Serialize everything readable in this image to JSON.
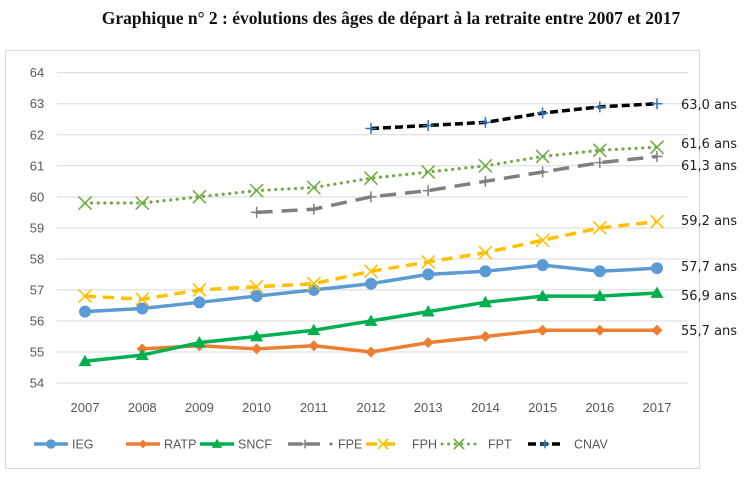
{
  "chart_data": {
    "type": "line",
    "title": "Graphique n° 2 : évolutions des âges de départ à la retraite entre 2007 et 2017",
    "xlabel": "",
    "ylabel": "",
    "x": [
      "2007",
      "2008",
      "2009",
      "2010",
      "2011",
      "2012",
      "2013",
      "2014",
      "2015",
      "2016",
      "2017"
    ],
    "yticks": [
      "54",
      "55",
      "56",
      "57",
      "58",
      "59",
      "60",
      "61",
      "62",
      "63",
      "64"
    ],
    "ylim": [
      54,
      64
    ],
    "grid": true,
    "legend_position": "bottom",
    "series": [
      {
        "name": "IEG",
        "color": "#5b9bd5",
        "style": "solid",
        "marker": "circle",
        "values": [
          56.3,
          56.4,
          56.6,
          56.8,
          57.0,
          57.2,
          57.5,
          57.6,
          57.8,
          57.6,
          57.7
        ],
        "end_label": "57,7 ans"
      },
      {
        "name": "RATP",
        "color": "#ed7d31",
        "style": "solid",
        "marker": "diamond",
        "values": [
          null,
          55.1,
          55.2,
          55.1,
          55.2,
          55.0,
          55.3,
          55.5,
          55.7,
          55.7,
          55.7
        ],
        "end_label": "55,7 ans"
      },
      {
        "name": "SNCF",
        "color": "#00b050",
        "style": "solid",
        "marker": "triangle",
        "values": [
          54.7,
          54.9,
          55.3,
          55.5,
          55.7,
          56.0,
          56.3,
          56.6,
          56.8,
          56.8,
          56.9
        ],
        "end_label": "56,9 ans"
      },
      {
        "name": "FPE",
        "color": "#7f7f7f",
        "style": "longdash",
        "marker": "plus",
        "values": [
          null,
          null,
          null,
          59.5,
          59.6,
          60.0,
          60.2,
          60.5,
          60.8,
          61.1,
          61.3
        ],
        "end_label": "61,3 ans"
      },
      {
        "name": "FPH",
        "color": "#ffc000",
        "style": "dash",
        "marker": "x",
        "values": [
          56.8,
          56.7,
          57.0,
          57.1,
          57.2,
          57.6,
          57.9,
          58.2,
          58.6,
          59.0,
          59.2
        ],
        "end_label": "59,2 ans"
      },
      {
        "name": "FPT",
        "color": "#70ad47",
        "style": "dot",
        "marker": "x",
        "values": [
          59.8,
          59.8,
          60.0,
          60.2,
          60.3,
          60.6,
          60.8,
          61.0,
          61.3,
          61.5,
          61.6
        ],
        "end_label": "61,6 ans"
      },
      {
        "name": "CNAV",
        "color": "#000000",
        "marker_color": "#2e75b6",
        "style": "shortdash",
        "marker": "plus",
        "values": [
          null,
          null,
          null,
          null,
          null,
          62.2,
          62.3,
          62.4,
          62.7,
          62.9,
          63.0
        ],
        "end_label": "63,0 ans"
      }
    ]
  }
}
